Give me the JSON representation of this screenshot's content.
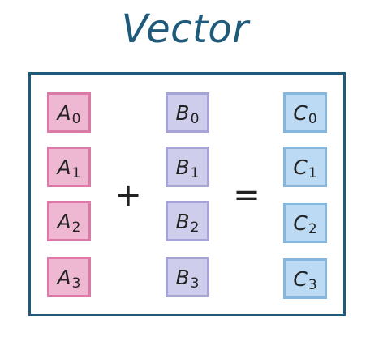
{
  "title": "Vector",
  "operators": {
    "plus": "+",
    "equals": "="
  },
  "vectors": {
    "a": [
      {
        "letter": "A",
        "index": "0"
      },
      {
        "letter": "A",
        "index": "1"
      },
      {
        "letter": "A",
        "index": "2"
      },
      {
        "letter": "A",
        "index": "3"
      }
    ],
    "b": [
      {
        "letter": "B",
        "index": "0"
      },
      {
        "letter": "B",
        "index": "1"
      },
      {
        "letter": "B",
        "index": "2"
      },
      {
        "letter": "B",
        "index": "3"
      }
    ],
    "c": [
      {
        "letter": "C",
        "index": "0"
      },
      {
        "letter": "C",
        "index": "1"
      },
      {
        "letter": "C",
        "index": "2"
      },
      {
        "letter": "C",
        "index": "3"
      }
    ]
  },
  "colors": {
    "title": "#1f5a7a",
    "frame": "#1f5a7a",
    "a_fill": "#efb8d2",
    "a_border": "#db7aa6",
    "b_fill": "#cfcdec",
    "b_border": "#a6a3d6",
    "c_fill": "#bcdaf3",
    "c_border": "#85b6de"
  }
}
